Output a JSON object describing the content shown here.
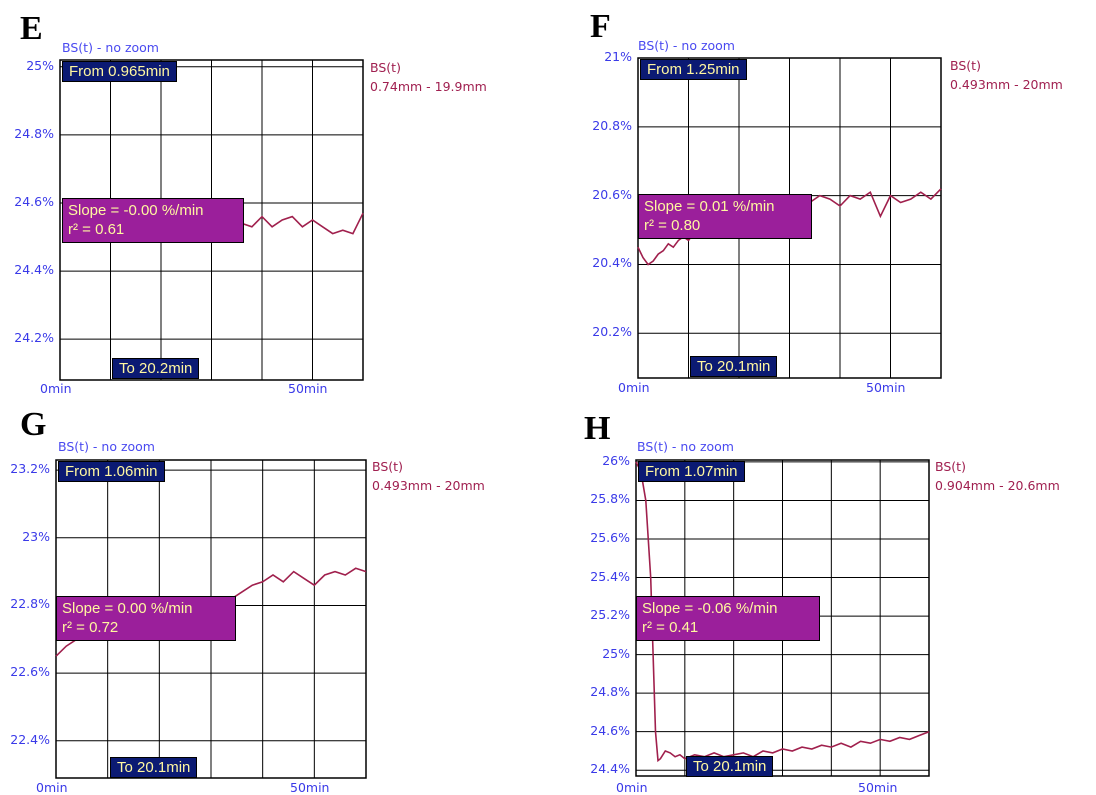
{
  "colors": {
    "series": "#a0204d",
    "grid": "#000000",
    "axis_text": "#3a3ae8",
    "title_text": "#4a4af0",
    "box_dark": "#0b1a73",
    "box_purple": "#9b1f9b",
    "box_text": "#fff7a0"
  },
  "chart_data": [
    {
      "panel": "E",
      "type": "line",
      "title": "BS(t) - no zoom",
      "legend_name": "BS(t)",
      "legend_range": "0.74mm - 19.9mm",
      "from_label": "From 0.965min",
      "to_label": "To 20.2min",
      "slope_label": "Slope = -0.00 %/min",
      "r2_label": "r² = 0.61",
      "x_tick_labels": [
        "0min",
        "50min"
      ],
      "xlim": [
        0,
        60
      ],
      "y_ticks": [
        24.2,
        24.4,
        24.6,
        24.8,
        25
      ],
      "y_tick_labels": [
        "24.2%",
        "24.4%",
        "24.6%",
        "24.8%",
        "25%"
      ],
      "ylim": [
        24.08,
        25.02
      ],
      "grid": true,
      "series": [
        {
          "x": [
            34,
            36,
            38,
            40,
            42,
            44,
            46,
            48,
            50,
            52,
            54,
            56,
            58,
            60
          ],
          "y": [
            24.55,
            24.54,
            24.53,
            24.56,
            24.53,
            24.55,
            24.56,
            24.53,
            24.55,
            24.53,
            24.51,
            24.52,
            24.51,
            24.57
          ]
        }
      ]
    },
    {
      "panel": "F",
      "type": "line",
      "title": "BS(t) - no zoom",
      "legend_name": "BS(t)",
      "legend_range": "0.493mm - 20mm",
      "from_label": "From 1.25min",
      "to_label": "To 20.1min",
      "slope_label": "Slope = 0.01 %/min",
      "r2_label": "r² = 0.80",
      "x_tick_labels": [
        "0min",
        "50min"
      ],
      "xlim": [
        0,
        60
      ],
      "y_ticks": [
        20.2,
        20.4,
        20.6,
        20.8,
        21
      ],
      "y_tick_labels": [
        "20.2%",
        "20.4%",
        "20.6%",
        "20.8%",
        "21%"
      ],
      "ylim": [
        20.07,
        21.0
      ],
      "grid": true,
      "series": [
        {
          "x": [
            0,
            1,
            2,
            3,
            4,
            5,
            6,
            7,
            8,
            9,
            10,
            11,
            12,
            14,
            16,
            18,
            20,
            22,
            24,
            26,
            28,
            30,
            32,
            34,
            36,
            38,
            40,
            42,
            44,
            46,
            48,
            50,
            52,
            54,
            56,
            58,
            60
          ],
          "y": [
            20.45,
            20.42,
            20.4,
            20.41,
            20.43,
            20.44,
            20.46,
            20.45,
            20.47,
            20.48,
            20.47,
            20.49,
            20.5,
            20.52,
            20.53,
            20.54,
            20.55,
            20.56,
            20.57,
            20.58,
            20.59,
            20.6,
            20.59,
            20.58,
            20.6,
            20.59,
            20.57,
            20.6,
            20.59,
            20.61,
            20.54,
            20.6,
            20.58,
            20.59,
            20.61,
            20.59,
            20.62
          ]
        }
      ]
    },
    {
      "panel": "G",
      "type": "line",
      "title": "BS(t) - no zoom",
      "legend_name": "BS(t)",
      "legend_range": "0.493mm - 20mm",
      "from_label": "From 1.06min",
      "to_label": "To 20.1min",
      "slope_label": "Slope = 0.00 %/min",
      "r2_label": "r² = 0.72",
      "x_tick_labels": [
        "0min",
        "50min"
      ],
      "xlim": [
        0,
        60
      ],
      "y_ticks": [
        22.4,
        22.6,
        22.8,
        23,
        23.2
      ],
      "y_tick_labels": [
        "22.4%",
        "22.6%",
        "22.8%",
        "23%",
        "23.2%"
      ],
      "ylim": [
        22.29,
        23.23
      ],
      "grid": true,
      "series": [
        {
          "x": [
            0,
            2,
            4,
            6,
            33,
            34,
            36,
            38,
            40,
            42,
            44,
            46,
            48,
            50,
            52,
            54,
            56,
            58,
            60
          ],
          "y": [
            22.65,
            22.68,
            22.7,
            22.71,
            22.8,
            22.82,
            22.84,
            22.86,
            22.87,
            22.89,
            22.87,
            22.9,
            22.88,
            22.86,
            22.89,
            22.9,
            22.89,
            22.91,
            22.9
          ]
        }
      ]
    },
    {
      "panel": "H",
      "type": "line",
      "title": "BS(t) - no zoom",
      "legend_name": "BS(t)",
      "legend_range": "0.904mm - 20.6mm",
      "from_label": "From 1.07min",
      "to_label": "To 20.1min",
      "slope_label": "Slope = -0.06 %/min",
      "r2_label": "r² = 0.41",
      "x_tick_labels": [
        "0min",
        "50min"
      ],
      "xlim": [
        0,
        60
      ],
      "y_ticks": [
        24.4,
        24.6,
        24.8,
        25,
        25.2,
        25.4,
        25.6,
        25.8,
        26
      ],
      "y_tick_labels": [
        "24.4%",
        "24.6%",
        "24.8%",
        "25%",
        "25.2%",
        "25.4%",
        "25.6%",
        "25.8%",
        "26%"
      ],
      "ylim": [
        24.37,
        26.01
      ],
      "grid": true,
      "series": [
        {
          "x": [
            0,
            1,
            2,
            3,
            3.5,
            4,
            4.5,
            5,
            6,
            7,
            8,
            9,
            10,
            12,
            14,
            16,
            18,
            20,
            22,
            24,
            26,
            28,
            30,
            32,
            34,
            36,
            38,
            40,
            42,
            44,
            46,
            48,
            50,
            52,
            54,
            56,
            58,
            60
          ],
          "y": [
            26.0,
            25.95,
            25.8,
            25.4,
            25.0,
            24.6,
            24.45,
            24.46,
            24.5,
            24.49,
            24.47,
            24.48,
            24.46,
            24.48,
            24.47,
            24.49,
            24.47,
            24.48,
            24.49,
            24.47,
            24.5,
            24.49,
            24.51,
            24.5,
            24.52,
            24.51,
            24.53,
            24.52,
            24.54,
            24.52,
            24.55,
            24.54,
            24.56,
            24.55,
            24.57,
            24.56,
            24.58,
            24.6
          ]
        }
      ]
    }
  ]
}
